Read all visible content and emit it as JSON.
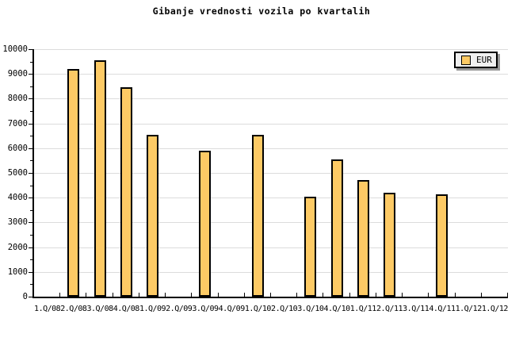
{
  "title": "Gibanje vrednosti vozila po kvartalih",
  "legend": {
    "label": "EUR",
    "position": "top-right"
  },
  "colors": {
    "background": "#FFFFFF",
    "bar_fill": "#FDCA65",
    "bar_border": "#000000",
    "gridline": "#DCDCDC",
    "axis": "#000000",
    "tick": "#000000",
    "legend_bg": "#F0F0F0",
    "legend_border": "#000000",
    "legend_shadow": "#999999",
    "text": "#000000"
  },
  "chart_data": {
    "type": "bar",
    "title": "Gibanje vrednosti vozila po kvartalih",
    "series_name": "EUR",
    "categories": [
      "1.Q/08",
      "2.Q/08",
      "3.Q/08",
      "4.Q/08",
      "1.Q/09",
      "2.Q/09",
      "3.Q/09",
      "4.Q/09",
      "1.Q/10",
      "2.Q/10",
      "3.Q/10",
      "4.Q/10",
      "1.Q/11",
      "2.Q/11",
      "3.Q/11",
      "4.Q/11",
      "1.Q/12",
      "1.Q/12"
    ],
    "values": [
      0,
      9200,
      9550,
      8450,
      6550,
      0,
      5900,
      0,
      6550,
      0,
      4050,
      5550,
      4700,
      4200,
      0,
      4150,
      0,
      0
    ],
    "xlabel": "",
    "ylabel": "",
    "ylim": [
      0,
      10000
    ],
    "yticks": [
      0,
      1000,
      2000,
      3000,
      4000,
      5000,
      6000,
      7000,
      8000,
      9000,
      10000
    ],
    "ytick_minor_step": 500,
    "grid": "horizontal-major",
    "legend_position": "top-right",
    "bar_gap_note": "bars absent where value is 0"
  }
}
